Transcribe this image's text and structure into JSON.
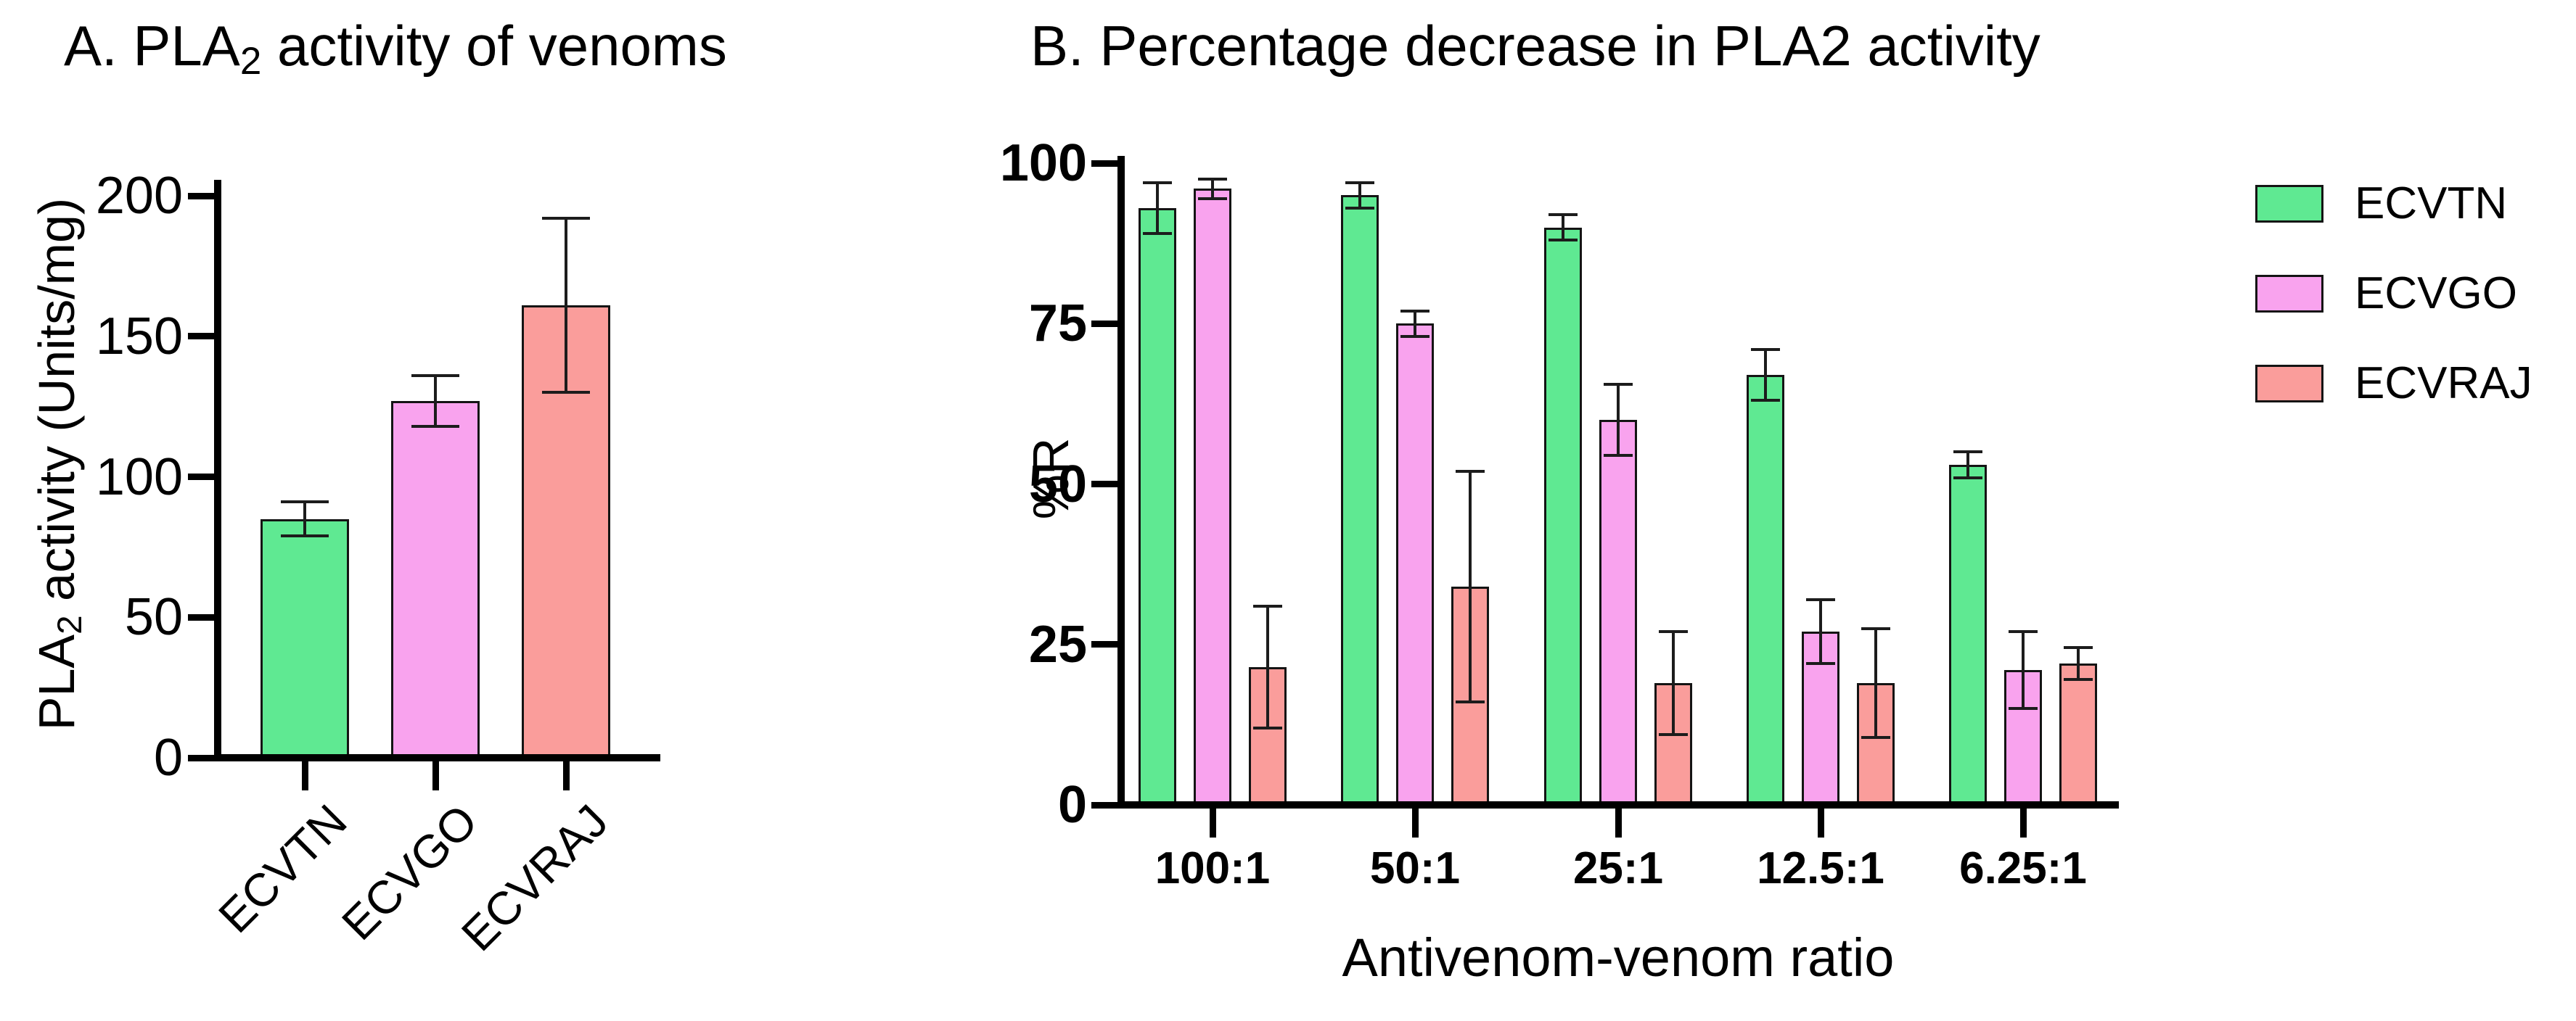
{
  "figure": {
    "background": "#ffffff",
    "axis_color": "#000000",
    "panel_a": {
      "title_pre": "A. PLA",
      "title_sub": "2",
      "title_post": " activity of venoms",
      "ylabel_pre": "PLA",
      "ylabel_sub": "2",
      "ylabel_post": " activity (Units/mg)"
    },
    "panel_b": {
      "title": "B. Percentage decrease in PLA2 activity",
      "ylabel": "%R",
      "xlabel": "Antivenom-venom ratio"
    },
    "series_colors": {
      "ECVTN": "#5FE992",
      "ECVGO": "#F9A3EE",
      "ECVRAJ": "#FA9D9B"
    }
  },
  "chart_data": [
    {
      "id": "A",
      "type": "bar",
      "title": "A. PLA2 activity of venoms",
      "xlabel": "",
      "ylabel": "PLA2 activity (Units/mg)",
      "ylim": [
        0,
        200
      ],
      "yticks": [
        0,
        50,
        100,
        150,
        200
      ],
      "grid": false,
      "categories": [
        "ECVTN",
        "ECVGO",
        "ECVRAJ"
      ],
      "values": [
        85,
        127,
        161
      ],
      "errors": [
        6,
        9,
        31
      ],
      "bar_colors": [
        "#5FE992",
        "#F9A3EE",
        "#FA9D9B"
      ]
    },
    {
      "id": "B",
      "type": "bar",
      "grouped": true,
      "title": "B. Percentage decrease in PLA2 activity",
      "xlabel": "Antivenom-venom ratio",
      "ylabel": "%R",
      "ylim": [
        0,
        100
      ],
      "yticks": [
        0,
        25,
        50,
        75,
        100
      ],
      "grid": false,
      "legend_position": "right",
      "categories": [
        "100:1",
        "50:1",
        "25:1",
        "12.5:1",
        "6.25:1"
      ],
      "series": [
        {
          "name": "ECVTN",
          "color": "#5FE992",
          "values": [
            93,
            95,
            90,
            67,
            53
          ],
          "errors": [
            4,
            2,
            2,
            4,
            2
          ]
        },
        {
          "name": "ECVGO",
          "color": "#F9A3EE",
          "values": [
            96,
            75,
            60,
            27,
            21
          ],
          "errors": [
            1.5,
            2,
            5.5,
            5,
            6
          ]
        },
        {
          "name": "ECVRAJ",
          "color": "#FA9D9B",
          "values": [
            21.5,
            34,
            19,
            19,
            22
          ],
          "errors": [
            9.5,
            18,
            8,
            8.5,
            2.5
          ]
        }
      ],
      "legend": [
        "ECVTN",
        "ECVGO",
        "ECVRAJ"
      ]
    }
  ]
}
